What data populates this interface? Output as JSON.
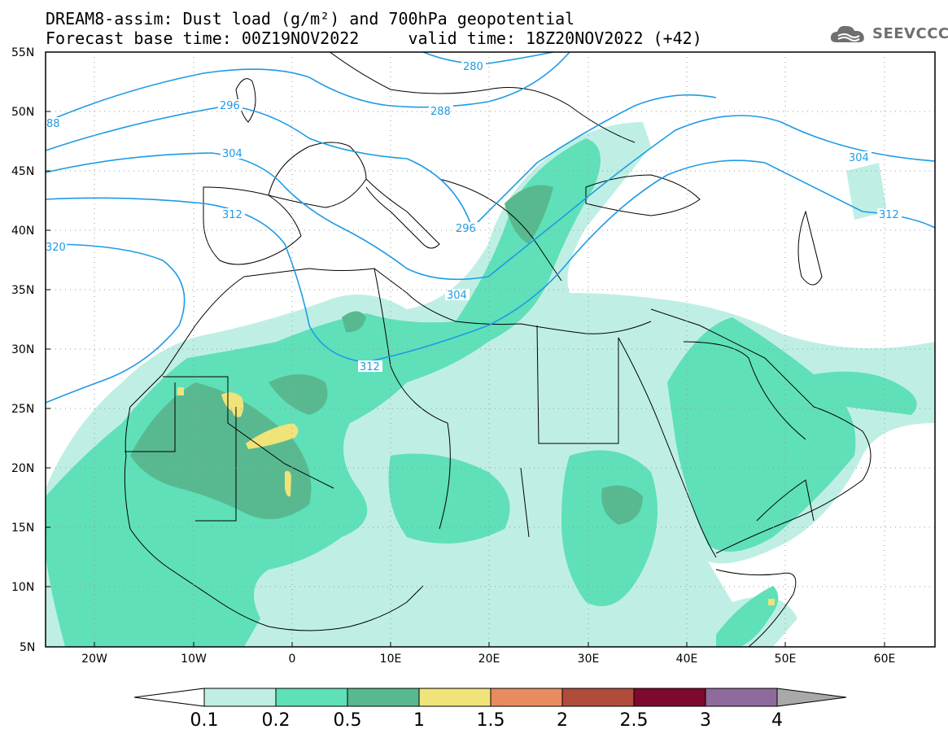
{
  "title": {
    "line1": "DREAM8-assim: Dust load (g/m²) and 700hPa geopotential",
    "line2": "Forecast base time: 00Z19NOV2022     valid time: 18Z20NOV2022 (+42)"
  },
  "logo": {
    "icon": "cloud-icon",
    "text": "SEEVCCC"
  },
  "map": {
    "lat_labels": [
      "55N",
      "50N",
      "45N",
      "40N",
      "35N",
      "30N",
      "25N",
      "20N",
      "15N",
      "10N",
      "5N"
    ],
    "lon_labels": [
      "20W",
      "10W",
      "0",
      "10E",
      "20E",
      "30E",
      "40E",
      "50E",
      "60E"
    ],
    "geopotential_labels": [
      "280",
      "288",
      "88",
      "296",
      "296",
      "304",
      "304",
      "304",
      "312",
      "312",
      "312",
      "320"
    ]
  },
  "colorbar": {
    "labels": [
      "0.1",
      "0.2",
      "0.5",
      "1",
      "1.5",
      "2",
      "2.5",
      "3",
      "4"
    ],
    "colors": [
      "#ffffff",
      "#bfefe4",
      "#5fe0b8",
      "#58b990",
      "#f0e37a",
      "#e98b61",
      "#b14c3a",
      "#7d0a2c",
      "#8e6b9c",
      "#a9a9a9"
    ]
  },
  "colors": {
    "contour": "#1e9be6",
    "dust_low": "#bfefe4",
    "dust_mid": "#5fe0b8",
    "dust_high": "#58b990",
    "dust_peak": "#f0e37a"
  }
}
